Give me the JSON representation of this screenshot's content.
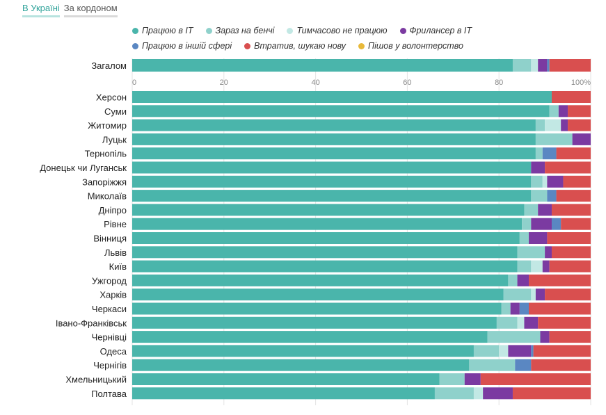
{
  "tabs": [
    {
      "label": "В Україні",
      "active": true
    },
    {
      "label": "За кордоном",
      "active": false
    }
  ],
  "chart_data": {
    "type": "bar",
    "orientation": "horizontal",
    "stacked": true,
    "xlim": [
      0,
      100
    ],
    "x_ticks": [
      "0",
      "20",
      "40",
      "60",
      "80",
      "100%"
    ],
    "categories_top": [
      "Загалом"
    ],
    "categories": [
      "Херсон",
      "Суми",
      "Житомир",
      "Луцьк",
      "Тернопіль",
      "Донецьк чи Луганськ",
      "Запоріжжя",
      "Миколаїв",
      "Дніпро",
      "Рівне",
      "Вінниця",
      "Львів",
      "Київ",
      "Ужгород",
      "Харків",
      "Черкаси",
      "Івано-Франківськ",
      "Чернівці",
      "Одеса",
      "Чернігів",
      "Хмельницький",
      "Полтава"
    ],
    "series": [
      {
        "name": "Працюю в IT",
        "color": "#4ab5ab",
        "top": [
          83
        ],
        "values": [
          91.5,
          91,
          88,
          88,
          88,
          87,
          87,
          87,
          85.5,
          85,
          84.5,
          84,
          84,
          82,
          81,
          80.5,
          79.5,
          77.5,
          74.5,
          73.5,
          67,
          66
        ]
      },
      {
        "name": "Зараз на бенчі",
        "color": "#8fd1cb",
        "top": [
          4
        ],
        "values": [
          0,
          2,
          2,
          8,
          1.5,
          0,
          2.5,
          3.5,
          3,
          2,
          2,
          6,
          3,
          2,
          6,
          2,
          4.5,
          11.5,
          5.5,
          10,
          5.5,
          8.5
        ]
      },
      {
        "name": "Тимчасово не працюю",
        "color": "#c2e8e4",
        "top": [
          1.5
        ],
        "values": [
          0,
          0,
          3.5,
          0,
          0,
          0,
          1,
          0,
          0,
          0,
          0,
          0,
          2.5,
          0,
          1,
          0,
          1.5,
          0,
          2,
          0,
          0,
          2
        ]
      },
      {
        "name": "Фрилансер в IT",
        "color": "#7b3aa1",
        "top": [
          2
        ],
        "values": [
          0,
          2,
          1.5,
          4,
          0,
          3,
          3.5,
          0,
          3,
          4.5,
          4,
          1.5,
          1.5,
          2.5,
          2,
          2,
          3,
          2,
          5,
          0,
          3.5,
          6.5
        ]
      },
      {
        "name": "Працюю в іншій сфері",
        "color": "#5a87c2",
        "top": [
          0.5
        ],
        "values": [
          0,
          0,
          0,
          0,
          3,
          0,
          0,
          2,
          0,
          2,
          0,
          0,
          0,
          0,
          0,
          2,
          0,
          0,
          0.5,
          3.5,
          0,
          0
        ]
      },
      {
        "name": "Втратив, шукаю нову",
        "color": "#d94f4f",
        "top": [
          9
        ],
        "values": [
          8.5,
          5,
          5,
          0,
          7.5,
          10,
          6,
          7.5,
          8.5,
          6.5,
          9.5,
          8.5,
          9,
          13.5,
          10,
          13.5,
          11.5,
          9,
          12.5,
          13,
          24,
          17
        ]
      },
      {
        "name": "Пішов у волонтерство",
        "color": "#e8b93a",
        "top": [
          0
        ],
        "values": [
          0,
          0,
          0,
          0,
          0,
          0,
          0,
          0,
          0,
          0,
          0,
          0,
          0,
          0,
          0,
          0,
          0,
          0,
          0,
          0,
          0,
          0
        ]
      }
    ]
  }
}
